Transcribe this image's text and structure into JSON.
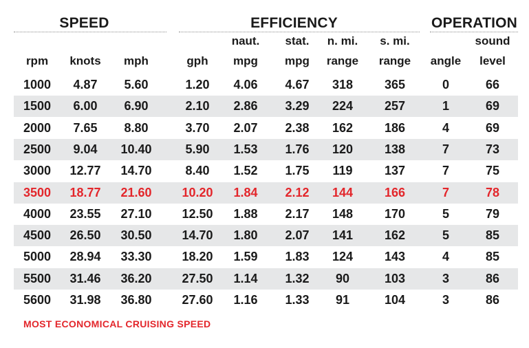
{
  "groups": {
    "speed": "SPEED",
    "efficiency": "EFFICIENCY",
    "operation": "OPERATION"
  },
  "columns": [
    {
      "key": "rpm",
      "top": "",
      "bottom": "rpm"
    },
    {
      "key": "knots",
      "top": "",
      "bottom": "knots"
    },
    {
      "key": "mph",
      "top": "",
      "bottom": "mph"
    },
    {
      "key": "gph",
      "top": "",
      "bottom": "gph"
    },
    {
      "key": "naut_mpg",
      "top": "naut.",
      "bottom": "mpg"
    },
    {
      "key": "stat_mpg",
      "top": "stat.",
      "bottom": "mpg"
    },
    {
      "key": "nmi_range",
      "top": "n. mi.",
      "bottom": "range"
    },
    {
      "key": "smi_range",
      "top": "s. mi.",
      "bottom": "range"
    },
    {
      "key": "angle",
      "top": "",
      "bottom": "angle"
    },
    {
      "key": "sound",
      "top": "sound",
      "bottom": "level"
    }
  ],
  "rows": [
    [
      "1000",
      "4.87",
      "5.60",
      "1.20",
      "4.06",
      "4.67",
      "318",
      "365",
      "0",
      "66"
    ],
    [
      "1500",
      "6.00",
      "6.90",
      "2.10",
      "2.86",
      "3.29",
      "224",
      "257",
      "1",
      "69"
    ],
    [
      "2000",
      "7.65",
      "8.80",
      "3.70",
      "2.07",
      "2.38",
      "162",
      "186",
      "4",
      "69"
    ],
    [
      "2500",
      "9.04",
      "10.40",
      "5.90",
      "1.53",
      "1.76",
      "120",
      "138",
      "7",
      "73"
    ],
    [
      "3000",
      "12.77",
      "14.70",
      "8.40",
      "1.52",
      "1.75",
      "119",
      "137",
      "7",
      "75"
    ],
    [
      "3500",
      "18.77",
      "21.60",
      "10.20",
      "1.84",
      "2.12",
      "144",
      "166",
      "7",
      "78"
    ],
    [
      "4000",
      "23.55",
      "27.10",
      "12.50",
      "1.88",
      "2.17",
      "148",
      "170",
      "5",
      "79"
    ],
    [
      "4500",
      "26.50",
      "30.50",
      "14.70",
      "1.80",
      "2.07",
      "141",
      "162",
      "5",
      "85"
    ],
    [
      "5000",
      "28.94",
      "33.30",
      "18.20",
      "1.59",
      "1.83",
      "124",
      "143",
      "4",
      "85"
    ],
    [
      "5500",
      "31.46",
      "36.20",
      "27.50",
      "1.14",
      "1.32",
      "90",
      "103",
      "3",
      "86"
    ],
    [
      "5600",
      "31.98",
      "36.80",
      "27.60",
      "1.16",
      "1.33",
      "91",
      "104",
      "3",
      "86"
    ]
  ],
  "highlight_row_index": 5,
  "colors": {
    "highlight": "#e3262b",
    "stripe": "#e6e7e8",
    "text": "#1a1a1a"
  },
  "footnote": "MOST ECONOMICAL CRUISING SPEED"
}
